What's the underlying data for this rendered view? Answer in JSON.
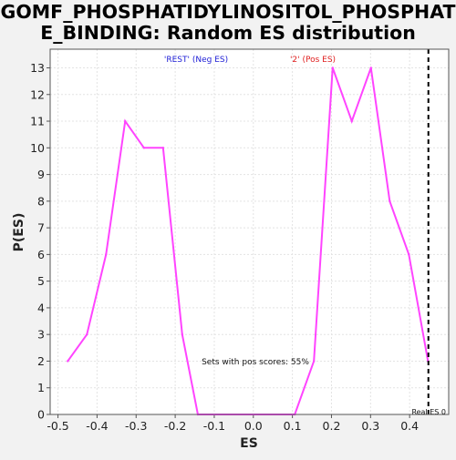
{
  "chart_data": {
    "type": "line",
    "title_line1": "GOMF_PHOSPHATIDYLINOSITOL_PHOSPHAT",
    "title_line2": "E_BINDING: Random ES distribution",
    "xlabel": "ES",
    "ylabel": "P(ES)",
    "xlim": [
      -0.52,
      0.5
    ],
    "ylim": [
      0,
      13.7
    ],
    "x_ticks": [
      "-0.5",
      "-0.4",
      "-0.3",
      "-0.2",
      "-0.1",
      "0.0",
      "0.1",
      "0.2",
      "0.3",
      "0.4"
    ],
    "x_tick_values": [
      -0.5,
      -0.4,
      -0.3,
      -0.2,
      -0.1,
      0.0,
      0.1,
      0.2,
      0.3,
      0.4
    ],
    "y_ticks": [
      "0",
      "1",
      "2",
      "3",
      "4",
      "5",
      "6",
      "7",
      "8",
      "9",
      "10",
      "11",
      "12",
      "13"
    ],
    "y_tick_values": [
      0,
      1,
      2,
      3,
      4,
      5,
      6,
      7,
      8,
      9,
      10,
      11,
      12,
      13
    ],
    "grid": true,
    "series": [
      {
        "color": "#ff44ff",
        "x": [
          -0.475,
          -0.426,
          -0.377,
          -0.328,
          -0.28,
          -0.231,
          -0.182,
          -0.142,
          0.106,
          0.155,
          0.203,
          0.252,
          0.301,
          0.349,
          0.398,
          0.447
        ],
        "y": [
          2,
          3,
          6,
          11,
          10,
          10,
          3,
          0,
          0,
          2,
          13,
          11,
          13,
          8,
          6,
          2
        ]
      }
    ],
    "legend_neg": "'REST' (Neg ES)",
    "legend_neg_color": "#1d1dd6",
    "legend_pos": "'2' (Pos ES)",
    "legend_pos_color": "#e02020",
    "annotation": "Sets with pos scores: 55%",
    "real_es_label": "Real ES 0",
    "real_es_value": 0.448
  }
}
